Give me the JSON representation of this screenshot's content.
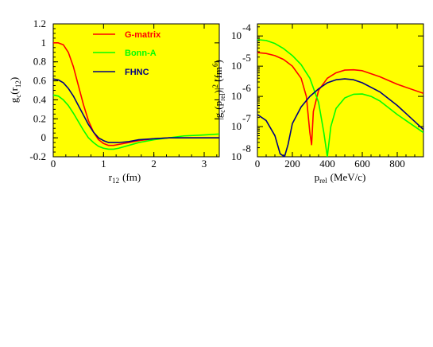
{
  "chart_data": [
    {
      "type": "line",
      "panel": "left",
      "background": "#ffff00",
      "xlabel": {
        "main": "r",
        "sub": "12",
        "unit": "(fm)"
      },
      "ylabel": {
        "main": "g",
        "sub": "c",
        "arg_open": "(r",
        "arg_sub": "12",
        "arg_close": ")"
      },
      "xlim": [
        0,
        3.3
      ],
      "ylim": [
        -0.2,
        1.2
      ],
      "xticks": [
        0,
        1,
        2,
        3
      ],
      "xtick_labels": [
        "0",
        "1",
        "2",
        "3"
      ],
      "yticks": [
        -0.2,
        0,
        0.2,
        0.4,
        0.6,
        0.8,
        1.0,
        1.2
      ],
      "ytick_labels": [
        "-0.2",
        "0",
        "0.2",
        "0.4",
        "0.6",
        "0.8",
        "1",
        "1.2"
      ],
      "legend_position": "top-right",
      "series": [
        {
          "name": "G-matrix",
          "color": "#ff0000",
          "points": [
            [
              0,
              1.0
            ],
            [
              0.1,
              1.0
            ],
            [
              0.2,
              0.98
            ],
            [
              0.3,
              0.9
            ],
            [
              0.4,
              0.75
            ],
            [
              0.5,
              0.55
            ],
            [
              0.6,
              0.35
            ],
            [
              0.7,
              0.18
            ],
            [
              0.8,
              0.06
            ],
            [
              0.9,
              -0.02
            ],
            [
              1.0,
              -0.06
            ],
            [
              1.1,
              -0.08
            ],
            [
              1.2,
              -0.08
            ],
            [
              1.3,
              -0.07
            ],
            [
              1.5,
              -0.05
            ],
            [
              1.7,
              -0.03
            ],
            [
              2.0,
              -0.01
            ],
            [
              2.3,
              0.0
            ],
            [
              2.6,
              0.0
            ],
            [
              3.0,
              0.0
            ],
            [
              3.3,
              0.0
            ]
          ]
        },
        {
          "name": "Bonn-A",
          "color": "#00ff00",
          "points": [
            [
              0,
              0.45
            ],
            [
              0.1,
              0.44
            ],
            [
              0.2,
              0.4
            ],
            [
              0.3,
              0.34
            ],
            [
              0.4,
              0.26
            ],
            [
              0.5,
              0.17
            ],
            [
              0.6,
              0.08
            ],
            [
              0.7,
              0.0
            ],
            [
              0.8,
              -0.05
            ],
            [
              0.9,
              -0.09
            ],
            [
              1.0,
              -0.11
            ],
            [
              1.1,
              -0.12
            ],
            [
              1.2,
              -0.12
            ],
            [
              1.3,
              -0.11
            ],
            [
              1.5,
              -0.08
            ],
            [
              1.7,
              -0.05
            ],
            [
              2.0,
              -0.02
            ],
            [
              2.3,
              0.0
            ],
            [
              2.6,
              0.02
            ],
            [
              3.0,
              0.03
            ],
            [
              3.3,
              0.04
            ]
          ]
        },
        {
          "name": "FHNC",
          "color": "#000080",
          "points": [
            [
              0,
              0.62
            ],
            [
              0.1,
              0.61
            ],
            [
              0.2,
              0.58
            ],
            [
              0.3,
              0.52
            ],
            [
              0.4,
              0.44
            ],
            [
              0.5,
              0.34
            ],
            [
              0.6,
              0.24
            ],
            [
              0.7,
              0.14
            ],
            [
              0.8,
              0.06
            ],
            [
              0.9,
              0.0
            ],
            [
              1.0,
              -0.03
            ],
            [
              1.1,
              -0.05
            ],
            [
              1.2,
              -0.05
            ],
            [
              1.3,
              -0.05
            ],
            [
              1.5,
              -0.04
            ],
            [
              1.7,
              -0.02
            ],
            [
              2.0,
              -0.01
            ],
            [
              2.3,
              0.0
            ],
            [
              2.6,
              0.0
            ],
            [
              3.0,
              0.0
            ],
            [
              3.3,
              0.0
            ]
          ]
        }
      ]
    },
    {
      "type": "line",
      "panel": "right",
      "background": "#ffff00",
      "yscale": "log",
      "xlabel": {
        "main": "p",
        "sub": "rel",
        "unit": "(MeV/c)"
      },
      "ylabel": {
        "text_a": "|g",
        "sub_a": "c",
        "text_b": "(p",
        "sub_b": "rel",
        "text_c": ")|",
        "sup_c": "2",
        "text_d": " (fm",
        "sup_d": "6",
        "text_e": ")"
      },
      "xlim": [
        0,
        950
      ],
      "ylim_exponent": [
        -8,
        -3.6
      ],
      "xticks": [
        0,
        200,
        400,
        600,
        800
      ],
      "xtick_labels": [
        "0",
        "200",
        "400",
        "600",
        "800"
      ],
      "ytick_exponents": [
        -4,
        -5,
        -6,
        -7,
        -8
      ],
      "ytick_base": "10",
      "ytick_sup_labels": [
        "-4",
        "-5",
        "-6",
        "-7",
        "-8"
      ],
      "series": [
        {
          "name": "G-matrix",
          "color": "#ff0000",
          "log10_points": [
            [
              0,
              -4.55
            ],
            [
              50,
              -4.58
            ],
            [
              100,
              -4.65
            ],
            [
              150,
              -4.78
            ],
            [
              200,
              -5.0
            ],
            [
              250,
              -5.4
            ],
            [
              280,
              -6.0
            ],
            [
              300,
              -7.2
            ],
            [
              310,
              -7.6
            ],
            [
              320,
              -6.5
            ],
            [
              350,
              -5.8
            ],
            [
              400,
              -5.4
            ],
            [
              450,
              -5.22
            ],
            [
              500,
              -5.13
            ],
            [
              550,
              -5.12
            ],
            [
              600,
              -5.15
            ],
            [
              700,
              -5.35
            ],
            [
              800,
              -5.6
            ],
            [
              950,
              -5.9
            ]
          ]
        },
        {
          "name": "Bonn-A",
          "color": "#00ff00",
          "log10_points": [
            [
              0,
              -4.12
            ],
            [
              50,
              -4.15
            ],
            [
              100,
              -4.25
            ],
            [
              150,
              -4.42
            ],
            [
              200,
              -4.65
            ],
            [
              250,
              -4.95
            ],
            [
              300,
              -5.4
            ],
            [
              350,
              -6.2
            ],
            [
              380,
              -7.2
            ],
            [
              400,
              -8.0
            ],
            [
              420,
              -7.0
            ],
            [
              450,
              -6.4
            ],
            [
              500,
              -6.05
            ],
            [
              550,
              -5.93
            ],
            [
              600,
              -5.92
            ],
            [
              650,
              -6.0
            ],
            [
              700,
              -6.15
            ],
            [
              800,
              -6.6
            ],
            [
              950,
              -7.2
            ]
          ]
        },
        {
          "name": "FHNC",
          "color": "#000080",
          "log10_points": [
            [
              0,
              -6.6
            ],
            [
              50,
              -6.8
            ],
            [
              100,
              -7.3
            ],
            [
              130,
              -7.9
            ],
            [
              155,
              -8.0
            ],
            [
              175,
              -7.6
            ],
            [
              200,
              -6.9
            ],
            [
              250,
              -6.35
            ],
            [
              300,
              -6.0
            ],
            [
              350,
              -5.75
            ],
            [
              400,
              -5.55
            ],
            [
              450,
              -5.45
            ],
            [
              500,
              -5.42
            ],
            [
              550,
              -5.45
            ],
            [
              600,
              -5.55
            ],
            [
              700,
              -5.85
            ],
            [
              800,
              -6.3
            ],
            [
              950,
              -7.1
            ]
          ]
        }
      ]
    }
  ]
}
